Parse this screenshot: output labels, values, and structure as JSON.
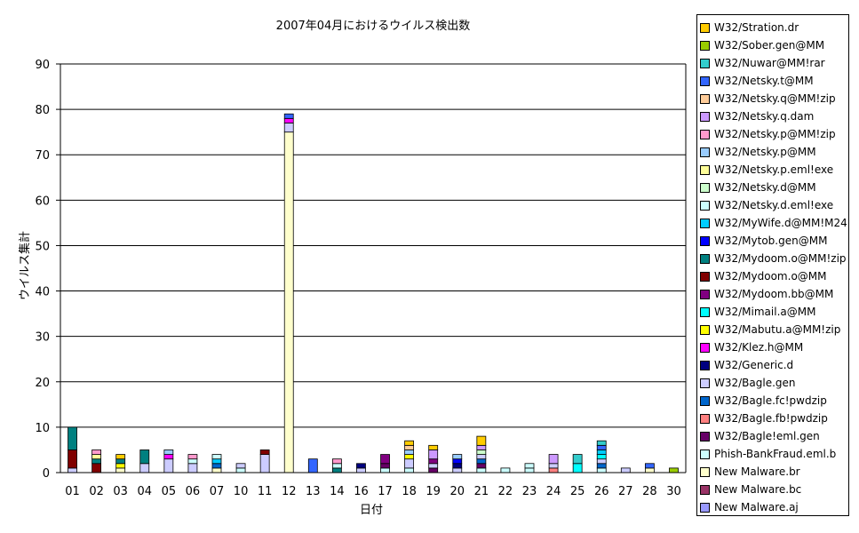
{
  "chart_data": {
    "type": "bar",
    "stacked": true,
    "title": "2007年04月におけるウイルス検出数",
    "xlabel": "日付",
    "ylabel": "ウイルス集計",
    "ylim": [
      0,
      90
    ],
    "yticks": [
      0,
      10,
      20,
      30,
      40,
      50,
      60,
      70,
      80,
      90
    ],
    "grid": true,
    "legend_position": "right",
    "categories": [
      "01",
      "02",
      "03",
      "04",
      "05",
      "06",
      "07",
      "10",
      "11",
      "12",
      "13",
      "14",
      "16",
      "17",
      "18",
      "19",
      "20",
      "21",
      "22",
      "23",
      "24",
      "25",
      "26",
      "27",
      "28",
      "30"
    ],
    "series": [
      {
        "name": "New Malware.aj",
        "color": "#9999ff",
        "values": [
          0,
          0,
          0,
          0,
          0,
          0,
          0,
          0,
          0,
          0,
          0,
          0,
          0,
          0,
          0,
          0,
          0,
          0,
          0,
          0,
          0,
          0,
          0,
          0,
          0,
          0
        ]
      },
      {
        "name": "New Malware.bc",
        "color": "#993366",
        "values": [
          0,
          0,
          0,
          0,
          0,
          0,
          0,
          0,
          0,
          0,
          0,
          0,
          0,
          0,
          0,
          0,
          0,
          0,
          0,
          0,
          0,
          0,
          0,
          0,
          0,
          0
        ]
      },
      {
        "name": "New Malware.br",
        "color": "#ffffcc",
        "values": [
          0,
          0,
          1,
          0,
          0,
          0,
          1,
          0,
          0,
          75,
          0,
          0,
          0,
          0,
          0,
          0,
          0,
          0,
          0,
          0,
          0,
          0,
          0,
          0,
          1,
          0
        ]
      },
      {
        "name": "Phish-BankFraud.eml.b",
        "color": "#ccffff",
        "values": [
          0,
          0,
          0,
          0,
          0,
          0,
          0,
          1,
          0,
          0,
          0,
          0,
          0,
          1,
          1,
          0,
          0,
          1,
          0,
          1,
          0,
          0,
          1,
          0,
          0,
          0
        ]
      },
      {
        "name": "W32/Bagle!eml.gen",
        "color": "#660066",
        "values": [
          0,
          0,
          0,
          0,
          0,
          0,
          0,
          0,
          0,
          0,
          0,
          0,
          0,
          1,
          0,
          1,
          0,
          1,
          0,
          0,
          0,
          0,
          0,
          0,
          0,
          0
        ]
      },
      {
        "name": "W32/Bagle.fb!pwdzip",
        "color": "#ff8080",
        "values": [
          0,
          0,
          0,
          0,
          0,
          0,
          0,
          0,
          0,
          0,
          0,
          0,
          0,
          0,
          0,
          0,
          0,
          0,
          0,
          0,
          1,
          0,
          0,
          0,
          0,
          0
        ]
      },
      {
        "name": "W32/Bagle.fc!pwdzip",
        "color": "#0066cc",
        "values": [
          0,
          0,
          0,
          0,
          0,
          0,
          1,
          0,
          0,
          0,
          0,
          0,
          0,
          0,
          0,
          0,
          0,
          1,
          0,
          0,
          0,
          0,
          1,
          0,
          0,
          0
        ]
      },
      {
        "name": "W32/Bagle.gen",
        "color": "#ccccff",
        "values": [
          1,
          0,
          0,
          2,
          3,
          2,
          0,
          1,
          4,
          2,
          0,
          0,
          1,
          0,
          2,
          1,
          1,
          1,
          0,
          0,
          1,
          0,
          1,
          1,
          0,
          0
        ]
      },
      {
        "name": "W32/Generic.d",
        "color": "#000080",
        "values": [
          0,
          0,
          0,
          0,
          0,
          0,
          0,
          0,
          0,
          0,
          0,
          0,
          1,
          0,
          0,
          0,
          1,
          0,
          0,
          0,
          0,
          0,
          0,
          0,
          0,
          0
        ]
      },
      {
        "name": "W32/Klez.h@MM",
        "color": "#ff00ff",
        "values": [
          0,
          0,
          0,
          0,
          1,
          0,
          0,
          0,
          0,
          1,
          0,
          0,
          0,
          0,
          0,
          0,
          0,
          0,
          0,
          0,
          0,
          0,
          0,
          0,
          0,
          0
        ]
      },
      {
        "name": "W32/Mabutu.a@MM!zip",
        "color": "#ffff00",
        "values": [
          0,
          0,
          1,
          0,
          0,
          0,
          0,
          0,
          0,
          0,
          0,
          0,
          0,
          0,
          1,
          0,
          0,
          0,
          0,
          0,
          0,
          0,
          0,
          0,
          0,
          0
        ]
      },
      {
        "name": "W32/Mimail.a@MM",
        "color": "#00ffff",
        "values": [
          0,
          0,
          0,
          0,
          0,
          0,
          0,
          0,
          0,
          0,
          0,
          0,
          0,
          0,
          0,
          0,
          0,
          0,
          0,
          0,
          0,
          2,
          1,
          0,
          0,
          0
        ]
      },
      {
        "name": "W32/Mydoom.bb@MM",
        "color": "#800080",
        "values": [
          0,
          0,
          0,
          0,
          0,
          0,
          0,
          0,
          0,
          0,
          0,
          0,
          0,
          2,
          0,
          1,
          0,
          0,
          0,
          0,
          0,
          0,
          0,
          0,
          0,
          0
        ]
      },
      {
        "name": "W32/Mydoom.o@MM",
        "color": "#800000",
        "values": [
          4,
          2,
          0,
          0,
          0,
          0,
          0,
          0,
          1,
          0,
          0,
          0,
          0,
          0,
          0,
          0,
          0,
          0,
          0,
          0,
          0,
          0,
          0,
          0,
          0,
          0
        ]
      },
      {
        "name": "W32/Mydoom.o@MM!zip",
        "color": "#008080",
        "values": [
          5,
          1,
          1,
          3,
          0,
          0,
          0,
          0,
          0,
          0,
          0,
          1,
          0,
          0,
          0,
          0,
          0,
          0,
          0,
          0,
          0,
          0,
          0,
          0,
          0,
          0
        ]
      },
      {
        "name": "W32/Mytob.gen@MM",
        "color": "#0000ff",
        "values": [
          0,
          0,
          0,
          0,
          0,
          0,
          0,
          0,
          0,
          0,
          0,
          0,
          0,
          0,
          0,
          0,
          1,
          0,
          0,
          0,
          0,
          0,
          0,
          0,
          0,
          0
        ]
      },
      {
        "name": "W32/MyWife.d@MM!M24",
        "color": "#00ccff",
        "values": [
          0,
          0,
          0,
          0,
          0,
          0,
          1,
          0,
          0,
          0,
          0,
          0,
          0,
          0,
          0,
          0,
          0,
          0,
          0,
          0,
          0,
          0,
          1,
          0,
          0,
          0
        ]
      },
      {
        "name": "W32/Netsky.d.eml!exe",
        "color": "#ccffff",
        "values": [
          0,
          0,
          0,
          0,
          0,
          1,
          1,
          0,
          0,
          0,
          0,
          1,
          0,
          0,
          0,
          0,
          0,
          0,
          1,
          1,
          0,
          0,
          0,
          0,
          0,
          0
        ]
      },
      {
        "name": "W32/Netsky.d@MM",
        "color": "#ccffcc",
        "values": [
          0,
          0,
          0,
          0,
          0,
          0,
          0,
          0,
          0,
          0,
          0,
          0,
          0,
          0,
          0,
          0,
          0,
          1,
          0,
          0,
          0,
          0,
          0,
          0,
          0,
          0
        ]
      },
      {
        "name": "W32/Netsky.p.eml!exe",
        "color": "#ffff99",
        "values": [
          0,
          1,
          0,
          0,
          0,
          0,
          0,
          0,
          0,
          0,
          0,
          0,
          0,
          0,
          0,
          0,
          0,
          0,
          0,
          0,
          0,
          0,
          0,
          0,
          0,
          0
        ]
      },
      {
        "name": "W32/Netsky.p@MM",
        "color": "#99ccff",
        "values": [
          0,
          0,
          0,
          0,
          1,
          0,
          0,
          0,
          0,
          0,
          0,
          0,
          0,
          0,
          1,
          0,
          1,
          0,
          0,
          0,
          0,
          0,
          0,
          0,
          0,
          0
        ]
      },
      {
        "name": "W32/Netsky.p@MM!zip",
        "color": "#ff99cc",
        "values": [
          0,
          1,
          0,
          0,
          0,
          1,
          0,
          0,
          0,
          0,
          0,
          1,
          0,
          0,
          0,
          0,
          0,
          0,
          0,
          0,
          0,
          0,
          0,
          0,
          0,
          0
        ]
      },
      {
        "name": "W32/Netsky.q.dam",
        "color": "#cc99ff",
        "values": [
          0,
          0,
          0,
          0,
          0,
          0,
          0,
          0,
          0,
          0,
          0,
          0,
          0,
          0,
          0,
          2,
          0,
          1,
          0,
          0,
          2,
          0,
          0,
          0,
          0,
          0
        ]
      },
      {
        "name": "W32/Netsky.q@MM!zip",
        "color": "#ffcc99",
        "values": [
          0,
          0,
          0,
          0,
          0,
          0,
          0,
          0,
          0,
          0,
          0,
          0,
          0,
          0,
          1,
          0,
          0,
          0,
          0,
          0,
          0,
          0,
          0,
          0,
          0,
          0
        ]
      },
      {
        "name": "W32/Netsky.t@MM",
        "color": "#3366ff",
        "values": [
          0,
          0,
          0,
          0,
          0,
          0,
          0,
          0,
          0,
          1,
          3,
          0,
          0,
          0,
          0,
          0,
          0,
          0,
          0,
          0,
          0,
          0,
          1,
          0,
          1,
          0
        ]
      },
      {
        "name": "W32/Nuwar@MM!rar",
        "color": "#33cccc",
        "values": [
          0,
          0,
          0,
          0,
          0,
          0,
          0,
          0,
          0,
          0,
          0,
          0,
          0,
          0,
          0,
          0,
          0,
          0,
          0,
          0,
          0,
          2,
          1,
          0,
          0,
          0
        ]
      },
      {
        "name": "W32/Sober.gen@MM",
        "color": "#99cc00",
        "values": [
          0,
          0,
          0,
          0,
          0,
          0,
          0,
          0,
          0,
          0,
          0,
          0,
          0,
          0,
          0,
          0,
          0,
          0,
          0,
          0,
          0,
          0,
          0,
          0,
          0,
          1
        ]
      },
      {
        "name": "W32/Stration.dr",
        "color": "#ffcc00",
        "values": [
          0,
          0,
          1,
          0,
          0,
          0,
          0,
          0,
          0,
          0,
          0,
          0,
          0,
          0,
          1,
          1,
          0,
          2,
          0,
          0,
          0,
          0,
          0,
          0,
          0,
          0
        ]
      }
    ]
  }
}
